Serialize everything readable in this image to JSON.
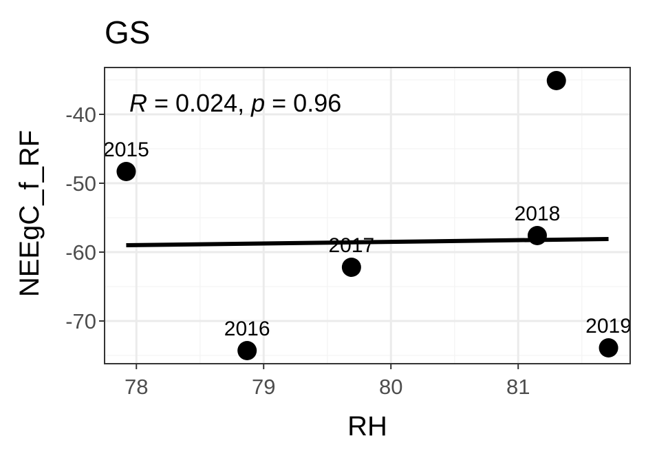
{
  "chart_data": {
    "type": "scatter",
    "title": "GS",
    "xlabel": "RH",
    "ylabel": "NEEgC_f_RF",
    "xlim": [
      77.75,
      81.88
    ],
    "ylim": [
      -76.2,
      -33.2
    ],
    "x_ticks": [
      78,
      79,
      80,
      81
    ],
    "y_ticks": [
      -70,
      -60,
      -50,
      -40
    ],
    "x_tick_labels": [
      "78",
      "79",
      "80",
      "81"
    ],
    "y_tick_labels": [
      "-70",
      "-60",
      "-50",
      "-40"
    ],
    "grid": true,
    "points": [
      {
        "x": 77.92,
        "y": -48.3,
        "label": "2015"
      },
      {
        "x": 78.87,
        "y": -74.3,
        "label": "2016"
      },
      {
        "x": 79.69,
        "y": -62.2,
        "label": "2017"
      },
      {
        "x": 81.15,
        "y": -57.6,
        "label": "2018"
      },
      {
        "x": 81.71,
        "y": -73.9,
        "label": "2019"
      },
      {
        "x": 81.3,
        "y": -35.1,
        "label": ""
      }
    ],
    "regression_line": {
      "x": [
        77.92,
        81.71
      ],
      "y": [
        -59.0,
        -58.1
      ]
    },
    "annotation": {
      "r_symbol": "R",
      "r_text": " = 0.024, ",
      "p_symbol": "p",
      "p_text": " = 0.96"
    },
    "colors": {
      "point": "#000000",
      "line": "#000000",
      "panel_border": "#333333",
      "grid_major": "#ebebeb",
      "grid_minor": "#f5f5f5",
      "tick_label": "#4d4d4d"
    }
  }
}
